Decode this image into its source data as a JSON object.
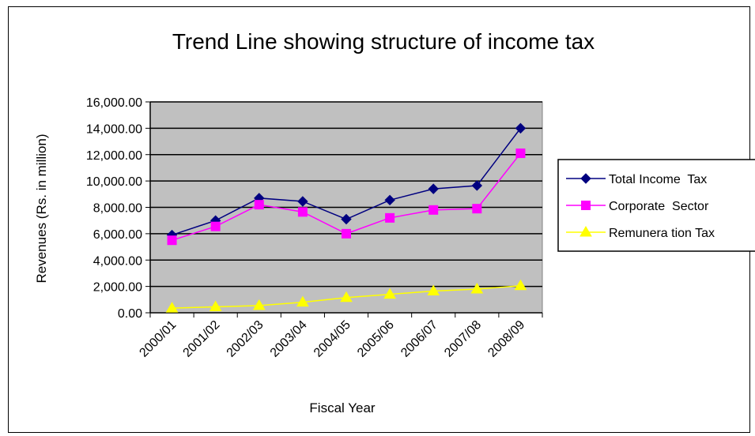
{
  "chart_data": {
    "type": "line",
    "title": "Trend Line showing structure of income tax",
    "xlabel": "Fiscal Year",
    "ylabel": "Revenues (Rs. in million)",
    "ylim": [
      0,
      16000
    ],
    "yticks": [
      "0.00",
      "2,000.00",
      "4,000.00",
      "6,000.00",
      "8,000.00",
      "10,000.00",
      "12,000.00",
      "14,000.00",
      "16,000.00"
    ],
    "ytick_values": [
      0,
      2000,
      4000,
      6000,
      8000,
      10000,
      12000,
      14000,
      16000
    ],
    "categories": [
      "2000/01",
      "2001/02",
      "2002/03",
      "2003/04",
      "2004/05",
      "2005/06",
      "2006/07",
      "2007/08",
      "2008/09"
    ],
    "grid": true,
    "legend_position": "right",
    "plot_background": "#c0c0c0",
    "series": [
      {
        "name": "Total Income  Tax",
        "color": "#000080",
        "marker": "diamond",
        "values": [
          5900,
          7000,
          8700,
          8450,
          7100,
          8550,
          9400,
          9650,
          14000
        ]
      },
      {
        "name": "Corporate  Sector",
        "color": "#ff00ff",
        "marker": "square",
        "values": [
          5500,
          6550,
          8200,
          7650,
          6000,
          7200,
          7800,
          7900,
          12100
        ]
      },
      {
        "name": "Remunera tion Tax",
        "color": "#ffff00",
        "marker": "triangle",
        "values": [
          350,
          450,
          550,
          800,
          1150,
          1400,
          1650,
          1800,
          2050
        ]
      }
    ]
  }
}
